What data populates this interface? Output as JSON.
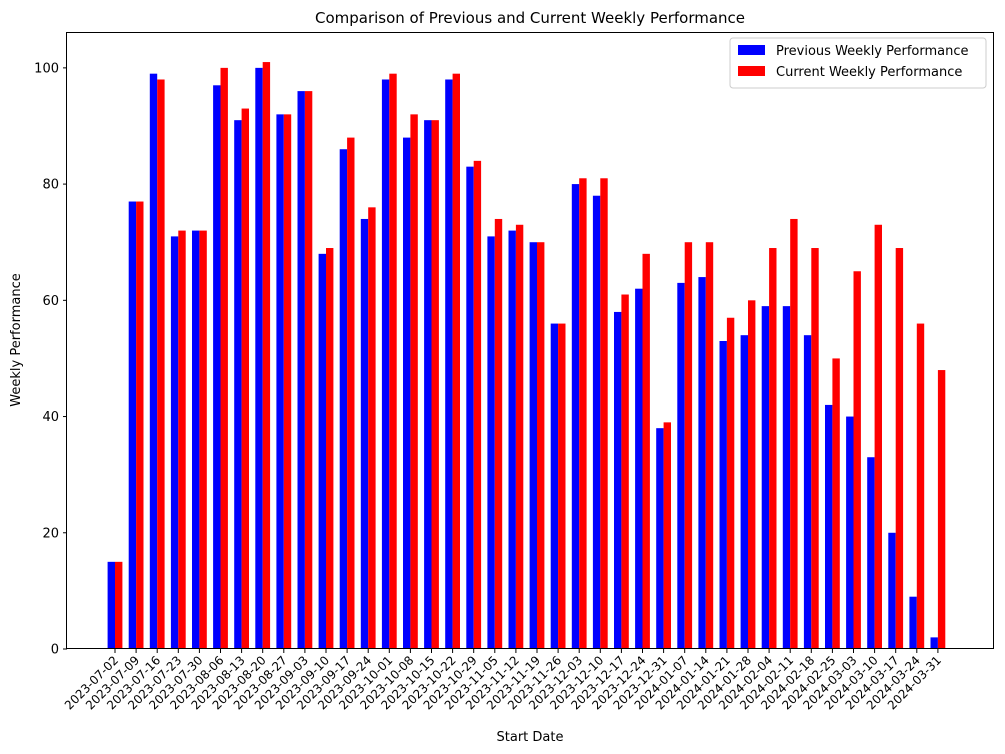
{
  "chart_data": {
    "type": "bar",
    "title": "Comparison of Previous and Current Weekly Performance",
    "xlabel": "Start Date",
    "ylabel": "Weekly Performance",
    "ylim": [
      0,
      106
    ],
    "yticks": [
      0,
      20,
      40,
      60,
      80,
      100
    ],
    "grid": false,
    "legend_position": "top-right",
    "categories": [
      "2023-07-02",
      "2023-07-09",
      "2023-07-16",
      "2023-07-23",
      "2023-07-30",
      "2023-08-06",
      "2023-08-13",
      "2023-08-20",
      "2023-08-27",
      "2023-09-03",
      "2023-09-10",
      "2023-09-17",
      "2023-09-24",
      "2023-10-01",
      "2023-10-08",
      "2023-10-15",
      "2023-10-22",
      "2023-10-29",
      "2023-11-05",
      "2023-11-12",
      "2023-11-19",
      "2023-11-26",
      "2023-12-03",
      "2023-12-10",
      "2023-12-17",
      "2023-12-24",
      "2023-12-31",
      "2024-01-07",
      "2024-01-14",
      "2024-01-21",
      "2024-01-28",
      "2024-02-04",
      "2024-02-11",
      "2024-02-18",
      "2024-02-25",
      "2024-03-03",
      "2024-03-10",
      "2024-03-17",
      "2024-03-24",
      "2024-03-31"
    ],
    "series": [
      {
        "name": "Previous Weekly Performance",
        "color": "#0000ff",
        "values": [
          15,
          77,
          99,
          71,
          72,
          97,
          91,
          100,
          92,
          96,
          68,
          86,
          74,
          98,
          88,
          91,
          98,
          83,
          71,
          72,
          70,
          56,
          80,
          78,
          58,
          62,
          38,
          63,
          64,
          53,
          54,
          59,
          59,
          54,
          42,
          40,
          33,
          20,
          9,
          2
        ]
      },
      {
        "name": "Current Weekly Performance",
        "color": "#ff0000",
        "values": [
          15,
          77,
          98,
          72,
          72,
          100,
          93,
          101,
          92,
          96,
          69,
          88,
          76,
          99,
          92,
          91,
          99,
          84,
          74,
          73,
          70,
          56,
          81,
          81,
          61,
          68,
          39,
          70,
          70,
          57,
          60,
          69,
          74,
          69,
          50,
          65,
          73,
          69,
          56,
          48
        ]
      }
    ]
  }
}
